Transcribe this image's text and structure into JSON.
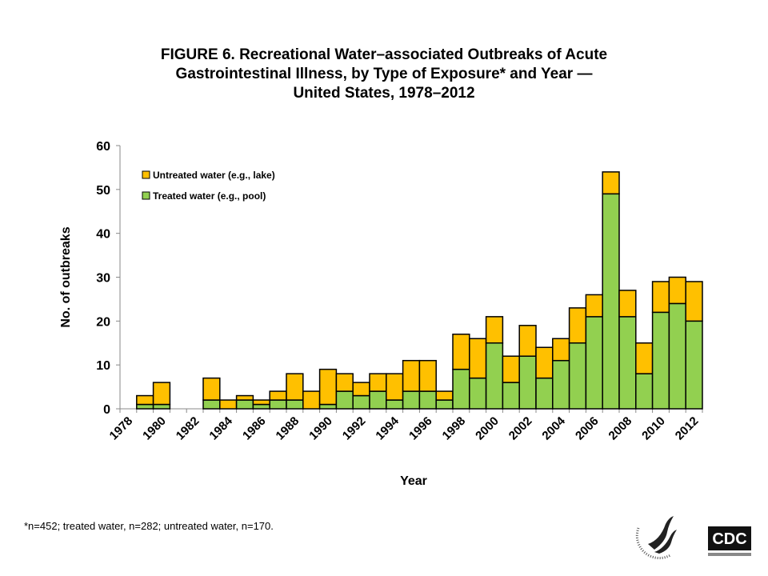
{
  "title_lines": [
    "FIGURE 6. Recreational Water–associated Outbreaks of Acute",
    "Gastrointestinal Illness, by Type of Exposure* and Year —",
    "United States, 1978–2012"
  ],
  "footnote": "*n=452; treated water, n=282; untreated water, n=170.",
  "logos": {
    "hhs": "Department of Health & Human Services USA",
    "cdc": "CDC"
  },
  "chart_data": {
    "type": "bar",
    "stacked": true,
    "xlabel": "Year",
    "ylabel": "No. of outbreaks",
    "ylim": [
      0,
      60
    ],
    "yticks": [
      0,
      10,
      20,
      30,
      40,
      50,
      60
    ],
    "xtick_labels": [
      "1978",
      "1980",
      "1982",
      "1984",
      "1986",
      "1988",
      "1990",
      "1992",
      "1994",
      "1996",
      "1998",
      "2000",
      "2002",
      "2004",
      "2006",
      "2008",
      "2010",
      "2012"
    ],
    "legend_position": "top-left",
    "categories": [
      1978,
      1979,
      1980,
      1981,
      1982,
      1983,
      1984,
      1985,
      1986,
      1987,
      1988,
      1989,
      1990,
      1991,
      1992,
      1993,
      1994,
      1995,
      1996,
      1997,
      1998,
      1999,
      2000,
      2001,
      2002,
      2003,
      2004,
      2005,
      2006,
      2007,
      2008,
      2009,
      2010,
      2011,
      2012
    ],
    "series": [
      {
        "name": "Treated water (e.g., pool)",
        "color": "#92d050",
        "values": [
          0,
          1,
          1,
          0,
          0,
          2,
          0,
          2,
          1,
          2,
          2,
          0,
          1,
          4,
          3,
          4,
          2,
          4,
          4,
          2,
          9,
          7,
          15,
          6,
          12,
          7,
          11,
          15,
          21,
          49,
          21,
          8,
          22,
          24,
          20
        ]
      },
      {
        "name": "Untreated water (e.g., lake)",
        "color": "#ffc000",
        "values": [
          0,
          2,
          5,
          0,
          0,
          5,
          2,
          1,
          1,
          2,
          6,
          4,
          8,
          4,
          3,
          4,
          6,
          7,
          7,
          2,
          8,
          9,
          6,
          6,
          7,
          7,
          5,
          8,
          5,
          5,
          6,
          7,
          7,
          6,
          9
        ]
      }
    ]
  }
}
